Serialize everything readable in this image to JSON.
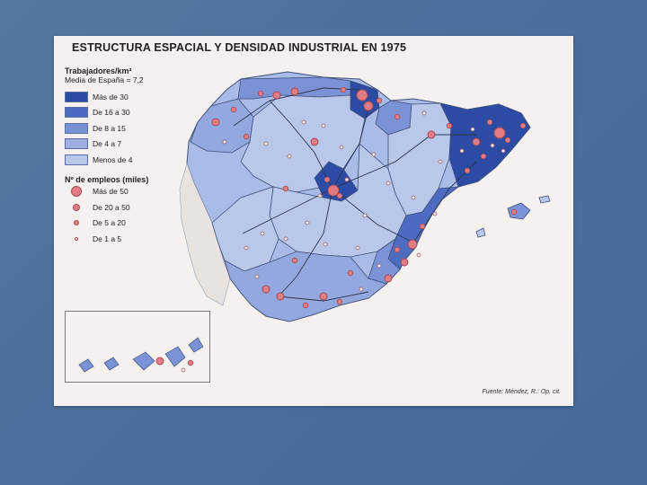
{
  "map": {
    "title": "ESTRUCTURA ESPACIAL Y DENSIDAD INDUSTRIAL EN 1975",
    "density_legend": {
      "header": "Trabajadores/km²",
      "subheader": "Media de España = 7,2",
      "classes": [
        {
          "label": "Más de 30",
          "color": "#2b4ba5"
        },
        {
          "label": "De 16 a 30",
          "color": "#4d6bc0"
        },
        {
          "label": "De 8 a 15",
          "color": "#7890d4"
        },
        {
          "label": "De 4 a 7",
          "color": "#9eb0e1"
        },
        {
          "label": "Menos de 4",
          "color": "#b8c7ea"
        }
      ]
    },
    "employment_legend": {
      "header": "Nº de empleos (miles)",
      "classes": [
        {
          "label": "Más de 50"
        },
        {
          "label": "De 20 a 50"
        },
        {
          "label": "De 5 a 20"
        },
        {
          "label": "De 1 a 5"
        }
      ]
    },
    "source": "Fuente: Méndez, R.: Op. cit.",
    "colors": {
      "dot_fill": "#e27c84",
      "dot_stroke": "#a54a52",
      "border": "#40507a",
      "road": "#2c3550"
    }
  }
}
